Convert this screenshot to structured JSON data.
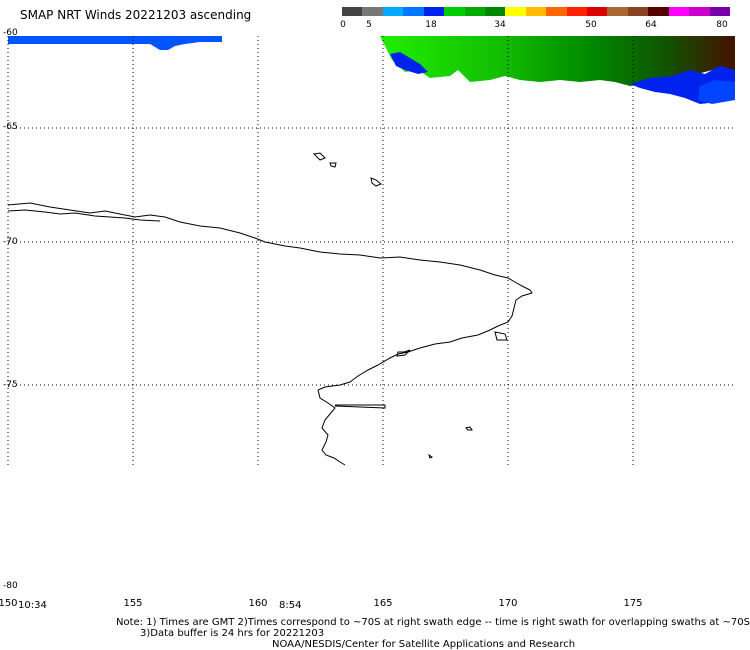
{
  "title": "SMAP NRT Winds 20221203 ascending",
  "colorbar": {
    "ticks": [
      "0",
      "5",
      "18",
      "34",
      "50",
      "64",
      "80"
    ],
    "colors": [
      "#444444",
      "#777777",
      "#00aaff",
      "#0077ff",
      "#0022ee",
      "#00cc00",
      "#00aa00",
      "#008800",
      "#ffff00",
      "#ffbb00",
      "#ff6600",
      "#ff2200",
      "#dd0000",
      "#aa6633",
      "#884422",
      "#550000",
      "#ff00ff",
      "#cc00cc",
      "#7700aa"
    ]
  },
  "map": {
    "lat_labels": [
      "-60",
      "-65",
      "-70",
      "-75",
      "-80"
    ],
    "lon_labels": [
      "150",
      "155",
      "160",
      "165",
      "170",
      "175"
    ],
    "time_labels": [
      "10:34",
      "8:54"
    ]
  },
  "notes": {
    "line1": "Note: 1) Times are GMT 2)Times correspond to ~70S at right swath edge -- time is right swath for overlapping swaths at ~70S",
    "line2": "3)Data buffer is 24 hrs for 20221203",
    "line3": "NOAA/NESDIS/Center for Satellite Applications and Research"
  }
}
